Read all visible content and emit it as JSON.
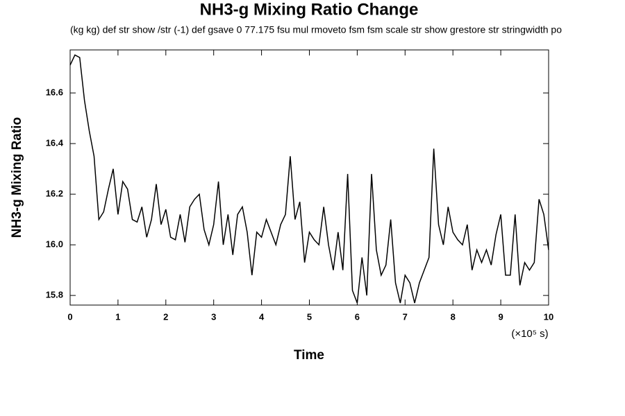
{
  "chart_data": {
    "type": "line",
    "title": "NH3-g Mixing Ratio Change",
    "subtitle": "(kg kg) def str show /str (-1) def gsave 0 77.175 fsu mul rmoveto fsm fsm scale str show grestore str stringwidth po",
    "y_label": "NH3-g Mixing Ratio",
    "x_label": "Time",
    "x_unit": "(×10⁵ s)",
    "x": [
      0,
      0.1,
      0.2,
      0.3,
      0.4,
      0.5,
      0.6,
      0.7,
      0.8,
      0.9,
      1,
      1.1,
      1.2,
      1.3,
      1.4,
      1.5,
      1.6,
      1.7,
      1.8,
      1.9,
      2,
      2.1,
      2.2,
      2.3,
      2.4,
      2.5,
      2.6,
      2.7,
      2.8,
      2.9,
      3,
      3.1,
      3.2,
      3.3,
      3.4,
      3.5,
      3.6,
      3.7,
      3.8,
      3.9,
      4,
      4.1,
      4.2,
      4.3,
      4.4,
      4.5,
      4.6,
      4.7,
      4.8,
      4.9,
      5,
      5.1,
      5.2,
      5.3,
      5.4,
      5.5,
      5.6,
      5.7,
      5.8,
      5.9,
      6,
      6.1,
      6.2,
      6.3,
      6.4,
      6.5,
      6.6,
      6.7,
      6.8,
      6.9,
      7,
      7.1,
      7.2,
      7.3,
      7.4,
      7.5,
      7.6,
      7.7,
      7.8,
      7.9,
      8,
      8.1,
      8.2,
      8.3,
      8.4,
      8.5,
      8.6,
      8.7,
      8.8,
      8.9,
      9,
      9.1,
      9.2,
      9.3,
      9.4,
      9.5,
      9.6,
      9.7,
      9.8,
      9.9,
      10
    ],
    "series": [
      {
        "name": "NH3-g",
        "color": "#000000",
        "values": [
          16.71,
          16.75,
          16.74,
          16.57,
          16.45,
          16.35,
          16.1,
          16.13,
          16.22,
          16.3,
          16.12,
          16.25,
          16.22,
          16.1,
          16.09,
          16.15,
          16.03,
          16.1,
          16.24,
          16.08,
          16.14,
          16.03,
          16.02,
          16.12,
          16.01,
          16.15,
          16.18,
          16.2,
          16.06,
          16.0,
          16.08,
          16.25,
          16.0,
          16.12,
          15.96,
          16.12,
          16.15,
          16.05,
          15.88,
          16.05,
          16.03,
          16.1,
          16.05,
          16.0,
          16.08,
          16.12,
          16.35,
          16.1,
          16.17,
          15.93,
          16.05,
          16.02,
          16.0,
          16.15,
          16.0,
          15.9,
          16.05,
          15.9,
          16.28,
          15.82,
          15.77,
          15.95,
          15.8,
          16.28,
          15.98,
          15.88,
          15.92,
          16.1,
          15.85,
          15.77,
          15.88,
          15.85,
          15.77,
          15.85,
          15.9,
          15.95,
          16.38,
          16.08,
          16.0,
          16.15,
          16.05,
          16.02,
          16.0,
          16.08,
          15.9,
          15.98,
          15.93,
          15.98,
          15.92,
          16.04,
          16.12,
          15.88,
          15.88,
          16.12,
          15.84,
          15.93,
          15.9,
          15.93,
          16.18,
          16.12,
          15.98
        ]
      }
    ],
    "xlim": [
      0,
      10
    ],
    "ylim": [
      15.762,
      16.77
    ],
    "xticks": [
      0,
      1,
      2,
      3,
      4,
      5,
      6,
      7,
      8,
      9,
      10
    ],
    "yticks": [
      15.8,
      {
        "value": 16,
        "label": "16.0"
      },
      16.2,
      16.4,
      16.6
    ]
  }
}
